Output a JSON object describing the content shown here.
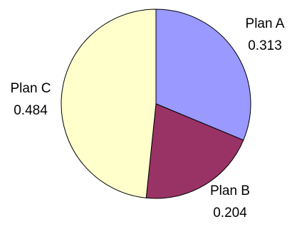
{
  "chart_data": {
    "type": "pie",
    "slices": [
      {
        "label": "Plan A",
        "value": 0.313,
        "value_text": "0.313",
        "color": "#9999FF"
      },
      {
        "label": "Plan B",
        "value": 0.204,
        "value_text": "0.204",
        "color": "#993366"
      },
      {
        "label": "Plan C",
        "value": 0.484,
        "value_text": "0.484",
        "color": "#FFFFCC"
      }
    ],
    "start_angle_deg": 0,
    "direction": "clockwise",
    "legend": "none",
    "data_labels": "outside"
  }
}
